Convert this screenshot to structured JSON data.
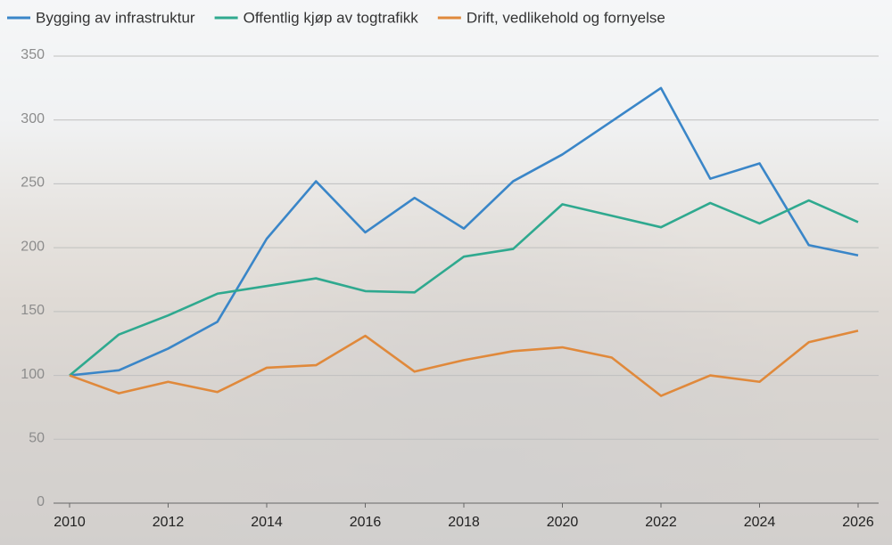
{
  "chart_data": {
    "type": "line",
    "x": [
      2010,
      2011,
      2012,
      2013,
      2014,
      2015,
      2016,
      2017,
      2018,
      2019,
      2020,
      2021,
      2022,
      2023,
      2024,
      2025,
      2026
    ],
    "series": [
      {
        "name": "Bygging av infrastruktur",
        "color": "#3a86c8",
        "values": [
          100,
          104,
          121,
          142,
          207,
          252,
          212,
          239,
          215,
          252,
          273,
          299,
          325,
          254,
          266,
          202,
          194
        ]
      },
      {
        "name": "Offentlig kjøp av togtrafikk",
        "color": "#2fa98f",
        "values": [
          100,
          132,
          147,
          164,
          170,
          176,
          166,
          165,
          193,
          199,
          234,
          225,
          216,
          235,
          219,
          237,
          220
        ]
      },
      {
        "name": "Drift, vedlikehold og fornyelse",
        "color": "#e0893b",
        "values": [
          100,
          86,
          95,
          87,
          106,
          108,
          131,
          103,
          112,
          119,
          122,
          114,
          84,
          100,
          95,
          126,
          135
        ]
      }
    ],
    "xlim": [
      2010,
      2026
    ],
    "xticks": [
      2010,
      2012,
      2014,
      2016,
      2018,
      2020,
      2022,
      2024,
      2026
    ],
    "ylim": [
      0,
      350
    ],
    "yticks": [
      0,
      50,
      100,
      150,
      200,
      250,
      300,
      350
    ],
    "grid": true,
    "legend": "top"
  }
}
